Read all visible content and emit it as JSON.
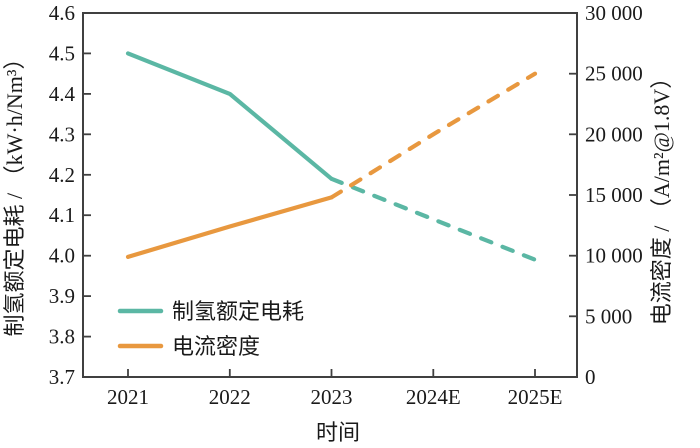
{
  "chart_data": {
    "type": "line",
    "title": "",
    "xlabel": "时间",
    "x_categories": [
      "2021",
      "2022",
      "2023",
      "2024E",
      "2025E"
    ],
    "left_axis": {
      "label": "制氢额定电耗 / （kW·h/Nm³）",
      "min": 3.7,
      "max": 4.6,
      "ticks": [
        {
          "v": 4.6,
          "label": "4.6"
        },
        {
          "v": 4.5,
          "label": "4.5"
        },
        {
          "v": 4.4,
          "label": "4.4"
        },
        {
          "v": 4.3,
          "label": "4.3"
        },
        {
          "v": 4.2,
          "label": "4.2"
        },
        {
          "v": 4.1,
          "label": "4.1"
        },
        {
          "v": 4.0,
          "label": "4.0"
        },
        {
          "v": 3.9,
          "label": "3.9"
        },
        {
          "v": 3.8,
          "label": "3.8"
        },
        {
          "v": 3.7,
          "label": "3.7"
        }
      ]
    },
    "right_axis": {
      "label": "电流密度 / （A/m²@1.8V）",
      "min": 0,
      "max": 30000,
      "ticks": [
        {
          "v": 30000,
          "label": "30 000"
        },
        {
          "v": 25000,
          "label": "25 000"
        },
        {
          "v": 20000,
          "label": "20 000"
        },
        {
          "v": 15000,
          "label": "15 000"
        },
        {
          "v": 10000,
          "label": "10 000"
        },
        {
          "v": 5000,
          "label": "5 000"
        },
        {
          "v": 0,
          "label": "0"
        }
      ]
    },
    "series": [
      {
        "name": "制氢额定电耗",
        "axis": "left",
        "color": "#5BB7A4",
        "values": [
          4.5,
          4.4,
          4.19,
          4.09,
          3.99
        ],
        "forecast_from_index": 2
      },
      {
        "name": "电流密度",
        "axis": "right",
        "color": "#E8983F",
        "values": [
          9900,
          12400,
          14800,
          20000,
          25000
        ],
        "forecast_from_index": 2
      }
    ],
    "legend": {
      "position": "lower-left",
      "items": [
        "制氢额定电耗",
        "电流密度"
      ]
    },
    "colors": {
      "teal": "#5BB7A4",
      "orange": "#E8983F",
      "axis": "#404040",
      "text": "#1a1a1a",
      "background": "#ffffff"
    },
    "grid": false,
    "line_style_note": "solid through 2023, dashed (forecast) from 2023 to 2025E"
  }
}
